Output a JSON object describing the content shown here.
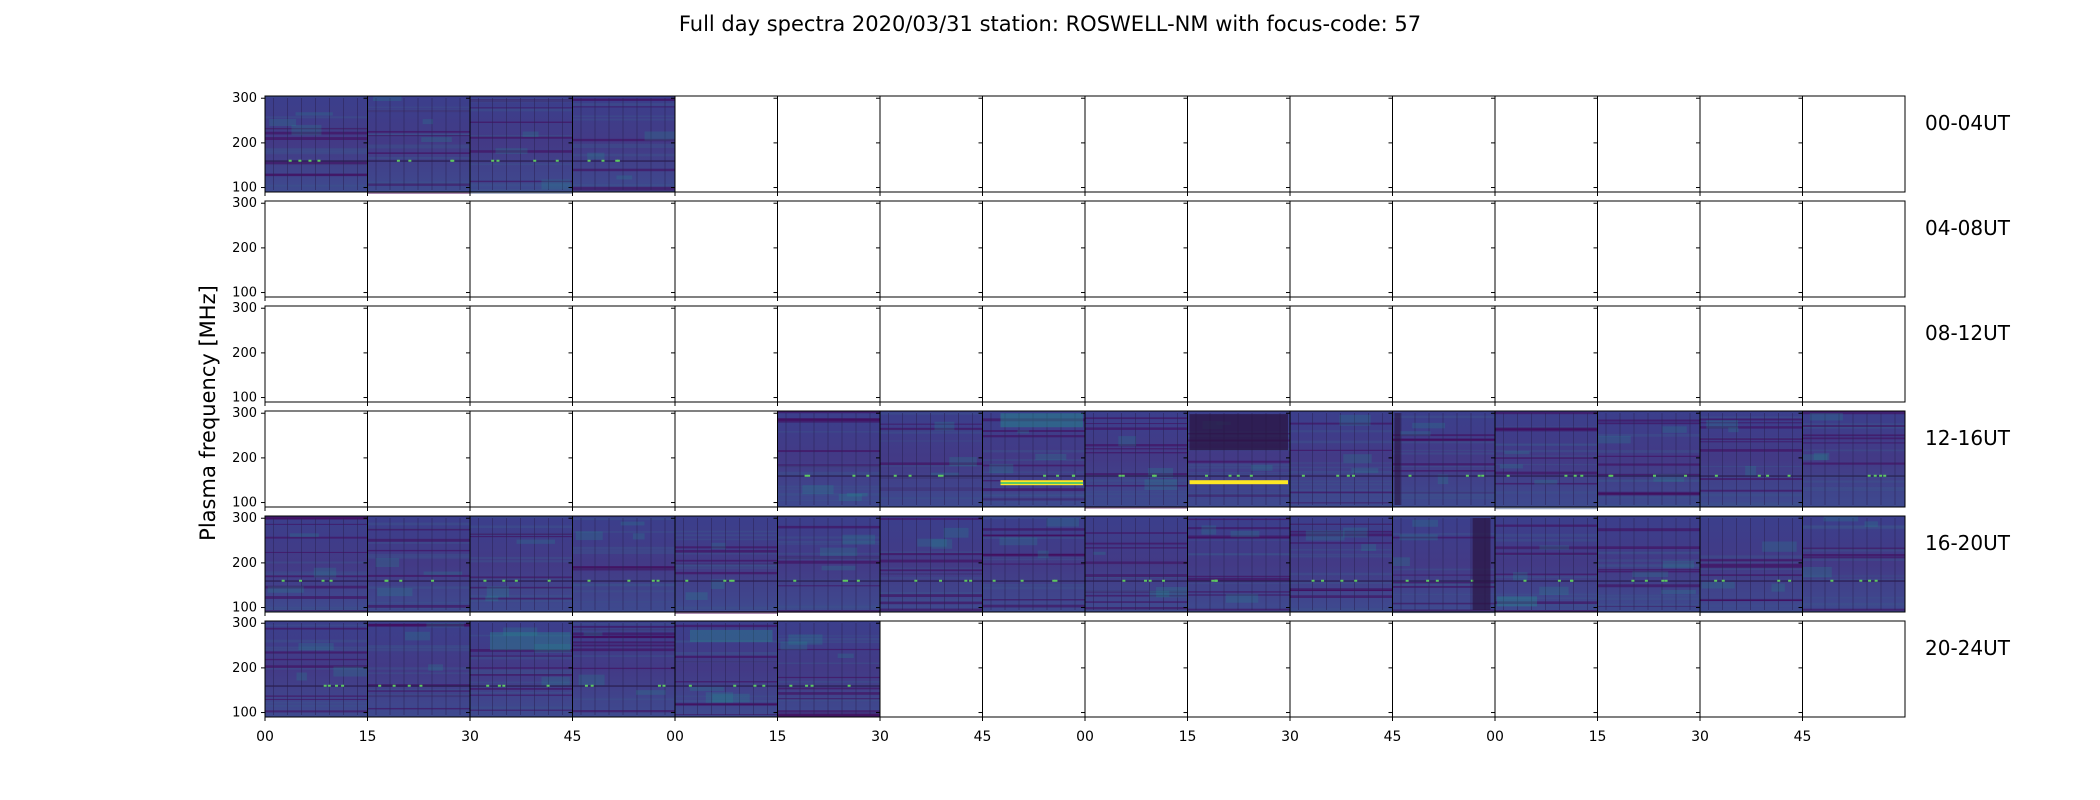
{
  "chart_data": {
    "type": "heatmap",
    "title": "Full day spectra 2020/03/31 station: ROSWELL-NM with focus-code: 57",
    "ylabel": "Plasma frequency [MHz]",
    "y_ticks": [
      "300",
      "200",
      "100"
    ],
    "ylim": [
      90,
      305
    ],
    "panels_per_row": 16,
    "minutes_per_panel": 15,
    "rows": [
      {
        "label": "00-04UT",
        "filled": [
          0,
          1,
          2,
          3
        ]
      },
      {
        "label": "04-08UT",
        "filled": []
      },
      {
        "label": "08-12UT",
        "filled": []
      },
      {
        "label": "12-16UT",
        "filled": [
          5,
          6,
          7,
          8,
          9,
          10,
          11,
          12,
          13,
          14,
          15
        ]
      },
      {
        "label": "16-20UT",
        "filled": [
          0,
          1,
          2,
          3,
          4,
          5,
          6,
          7,
          8,
          9,
          10,
          11,
          12,
          13,
          14,
          15
        ]
      },
      {
        "label": "20-24UT",
        "filled": [
          0,
          1,
          2,
          3,
          4,
          5
        ]
      }
    ],
    "x_tick_labels": [
      "00",
      "15",
      "30",
      "45",
      "00",
      "15",
      "30",
      "45",
      "00",
      "15",
      "30",
      "45",
      "00",
      "15",
      "30",
      "45"
    ],
    "colormap": [
      "#440154",
      "#3b528b",
      "#21918c",
      "#5ec962",
      "#fde725"
    ],
    "grid": false
  }
}
